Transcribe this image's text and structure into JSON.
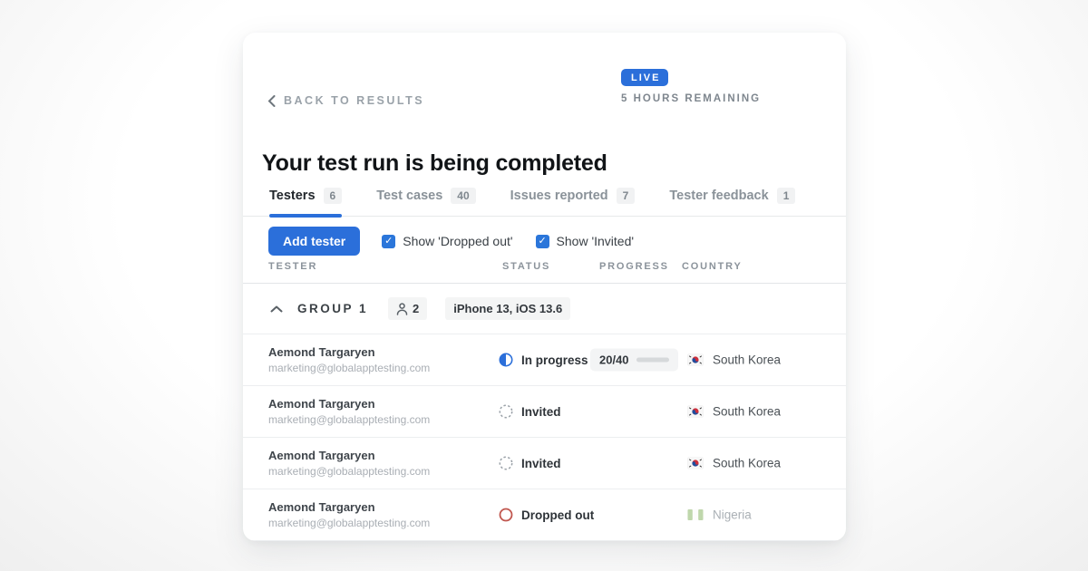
{
  "header": {
    "back_label": "BACK TO RESULTS",
    "live_badge": "LIVE",
    "time_remaining": "5 HOURS REMAINING",
    "title": "Your test run is being completed"
  },
  "tabs": [
    {
      "label": "Testers",
      "count": "6"
    },
    {
      "label": "Test cases",
      "count": "40"
    },
    {
      "label": "Issues reported",
      "count": "7"
    },
    {
      "label": "Tester feedback",
      "count": "1"
    }
  ],
  "toolbar": {
    "add_tester": "Add tester",
    "show_dropped_out": "Show 'Dropped out'",
    "show_invited": "Show 'Invited'",
    "checkmark": "✓"
  },
  "table": {
    "headers": {
      "tester": "TESTER",
      "status": "STATUS",
      "progress": "PROGRESS",
      "country": "COUNTRY"
    },
    "group": {
      "name": "GROUP 1",
      "member_count": "2",
      "device": "iPhone 13, iOS 13.6"
    },
    "rows": [
      {
        "name": "Aemond Targaryen",
        "email": "marketing@globalapptesting.com",
        "status": "In progress",
        "progress": "20/40",
        "progress_pct": 50,
        "country": "South Korea"
      },
      {
        "name": "Aemond Targaryen",
        "email": "marketing@globalapptesting.com",
        "status": "Invited",
        "country": "South Korea"
      },
      {
        "name": "Aemond Targaryen",
        "email": "marketing@globalapptesting.com",
        "status": "Invited",
        "country": "South Korea"
      },
      {
        "name": "Aemond Targaryen",
        "email": "marketing@globalapptesting.com",
        "status": "Dropped out",
        "country": "Nigeria"
      }
    ]
  },
  "colors": {
    "accent_blue": "#2b6fda",
    "danger_red": "#c0564e",
    "muted_gray": "#9aa1a8"
  }
}
